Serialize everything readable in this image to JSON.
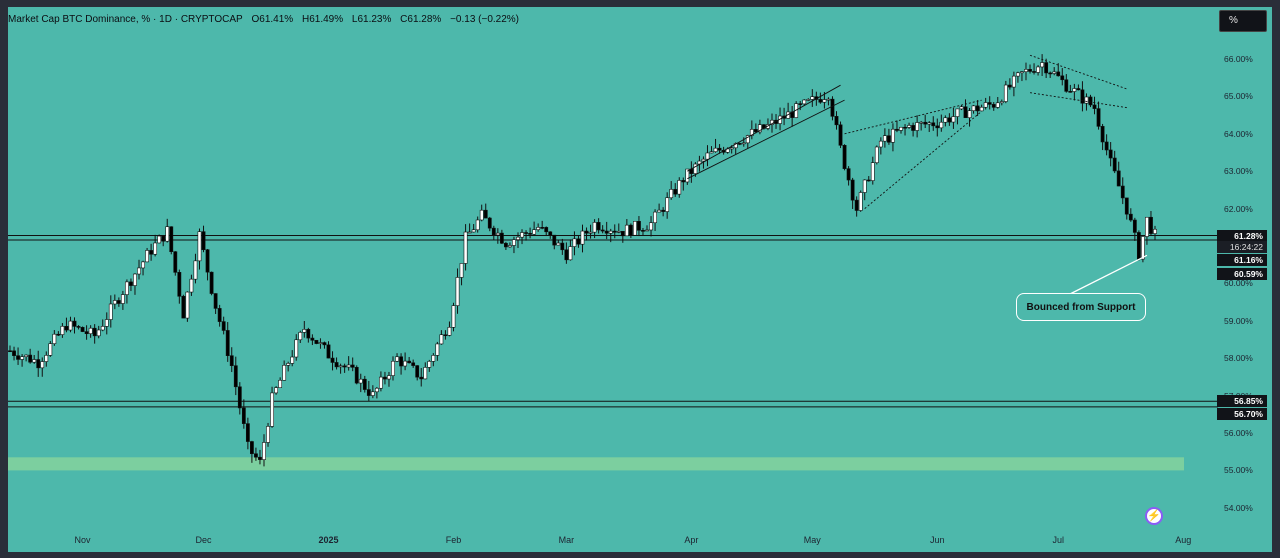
{
  "header": {
    "symbol": "Market Cap BTC Dominance, % · 1D · CRYPTOCAP",
    "open": "O61.41%",
    "high": "H61.49%",
    "low": "L61.23%",
    "close": "C61.28%",
    "change": "−0.13 (−0.22%)"
  },
  "toolbar": {
    "scale_button": "%"
  },
  "annotation": {
    "callout": "Bounced from Support"
  },
  "badges": {
    "last_price": "61.28%",
    "countdown": "16:24:22",
    "level_upper": "61.16%",
    "low_marker": "60.59%",
    "level_mid": "56.85%",
    "level_low": "56.70%"
  },
  "colors": {
    "background": "#4db8ab",
    "up": "#ffffff",
    "down": "#000000",
    "zone": "#7ccf9f"
  },
  "chart_data": {
    "type": "candlestick",
    "y_unit": "%",
    "ylim": [
      53.6,
      66.8
    ],
    "y_ticks": [
      "66.00%",
      "65.00%",
      "64.00%",
      "63.00%",
      "62.00%",
      "61.00%",
      "60.00%",
      "59.00%",
      "58.00%",
      "57.00%",
      "56.00%",
      "55.00%",
      "54.00%"
    ],
    "x_ticks": [
      "Nov",
      "Dec",
      "2025",
      "Feb",
      "Mar",
      "Apr",
      "May",
      "Jun",
      "Jul",
      "Aug"
    ],
    "horizontal_levels": [
      61.28,
      61.16,
      56.85,
      56.7
    ],
    "support_zone": [
      55.0,
      55.35
    ],
    "approx_close_path": [
      [
        "2024-10-14",
        58.2
      ],
      [
        "2024-10-21",
        57.9
      ],
      [
        "2024-10-28",
        58.9
      ],
      [
        "2024-11-04",
        58.6
      ],
      [
        "2024-11-11",
        59.8
      ],
      [
        "2024-11-18",
        60.9
      ],
      [
        "2024-11-22",
        61.4
      ],
      [
        "2024-11-26",
        59.2
      ],
      [
        "2024-11-30",
        61.3
      ],
      [
        "2024-12-04",
        59.4
      ],
      [
        "2024-12-08",
        57.8
      ],
      [
        "2024-12-12",
        55.6
      ],
      [
        "2024-12-15",
        55.2
      ],
      [
        "2024-12-18",
        56.9
      ],
      [
        "2024-12-22",
        57.9
      ],
      [
        "2024-12-26",
        58.8
      ],
      [
        "2025-01-01",
        58.1
      ],
      [
        "2025-01-07",
        57.6
      ],
      [
        "2025-01-12",
        57.0
      ],
      [
        "2025-01-18",
        58.0
      ],
      [
        "2025-01-24",
        57.5
      ],
      [
        "2025-01-31",
        59.0
      ],
      [
        "2025-02-04",
        61.2
      ],
      [
        "2025-02-08",
        61.8
      ],
      [
        "2025-02-14",
        61.1
      ],
      [
        "2025-02-22",
        61.5
      ],
      [
        "2025-03-01",
        60.8
      ],
      [
        "2025-03-08",
        61.6
      ],
      [
        "2025-03-15",
        61.4
      ],
      [
        "2025-03-22",
        61.6
      ],
      [
        "2025-03-30",
        62.8
      ],
      [
        "2025-04-05",
        63.4
      ],
      [
        "2025-04-12",
        63.8
      ],
      [
        "2025-04-20",
        64.2
      ],
      [
        "2025-04-28",
        64.7
      ],
      [
        "2025-05-05",
        65.1
      ],
      [
        "2025-05-08",
        63.6
      ],
      [
        "2025-05-12",
        62.0
      ],
      [
        "2025-05-18",
        63.8
      ],
      [
        "2025-05-25",
        64.2
      ],
      [
        "2025-06-01",
        64.3
      ],
      [
        "2025-06-08",
        64.6
      ],
      [
        "2025-06-15",
        64.8
      ],
      [
        "2025-06-22",
        65.6
      ],
      [
        "2025-06-27",
        65.9
      ],
      [
        "2025-07-03",
        65.3
      ],
      [
        "2025-07-10",
        64.7
      ],
      [
        "2025-07-14",
        63.2
      ],
      [
        "2025-07-18",
        62.0
      ],
      [
        "2025-07-21",
        60.8
      ],
      [
        "2025-07-23",
        61.7
      ],
      [
        "2025-07-25",
        61.28
      ]
    ]
  }
}
